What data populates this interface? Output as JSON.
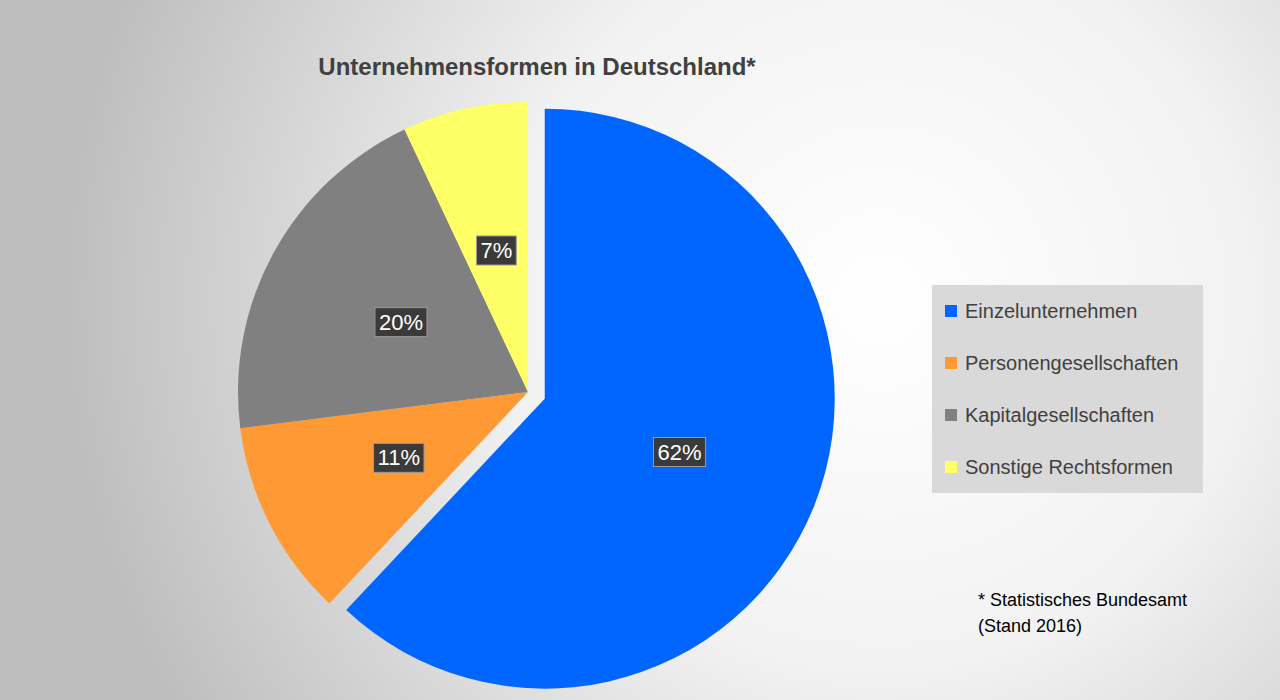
{
  "chart_data": {
    "type": "pie",
    "title": "Unternehmensformen in Deutschland*",
    "categories": [
      "Einzelunternehmen",
      "Personengesellschaften",
      "Kapitalgesellschaften",
      "Sonstige Rechtsformen"
    ],
    "values": [
      62,
      11,
      20,
      7
    ],
    "value_labels": [
      "62%",
      "11%",
      "20%",
      "7%"
    ],
    "colors": [
      "#0066ff",
      "#ff9933",
      "#808080",
      "#ffff66"
    ],
    "data_labels": true,
    "legend": "right",
    "footnote": [
      "* Statistisches Bundesamt",
      "(Stand 2016)"
    ]
  }
}
